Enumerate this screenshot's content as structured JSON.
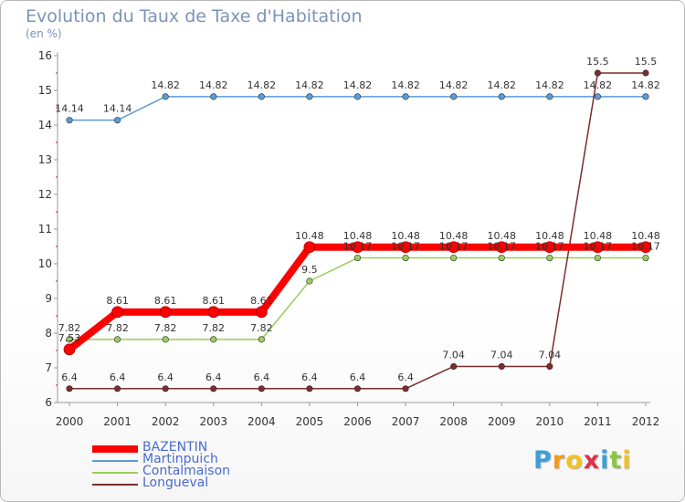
{
  "title": "Evolution du Taux de Taxe d'Habitation",
  "unit_label": "(en %)",
  "chart_data": {
    "type": "line",
    "title": "Evolution du Taux de Taxe d'Habitation",
    "ylabel": "(en %)",
    "xlabel": "",
    "categories": [
      "2000",
      "2001",
      "2002",
      "2003",
      "2004",
      "2005",
      "2006",
      "2007",
      "2008",
      "2009",
      "2010",
      "2011",
      "2012"
    ],
    "ylim": [
      6,
      16
    ],
    "yticks": [
      "6",
      "7",
      "8",
      "9",
      "10",
      "11",
      "12",
      "13",
      "14",
      "15",
      "16"
    ],
    "grid": false,
    "legend_position": "bottom-left",
    "series": [
      {
        "name": "BAZENTIN",
        "color": "#ff0000",
        "emphasis": "thick",
        "values": [
          7.53,
          8.61,
          8.61,
          8.61,
          8.61,
          10.48,
          10.48,
          10.48,
          10.48,
          10.48,
          10.48,
          10.48,
          10.48
        ],
        "labels": [
          "7.53",
          "8.61",
          "8.61",
          "8.61",
          "8.61",
          "10.48",
          "10.48",
          "10.48",
          "10.48",
          "10.48",
          "10.48",
          "10.48",
          "10.48"
        ]
      },
      {
        "name": "Martinpuich",
        "color": "#5b9bd5",
        "emphasis": "thin",
        "values": [
          14.14,
          14.14,
          14.82,
          14.82,
          14.82,
          14.82,
          14.82,
          14.82,
          14.82,
          14.82,
          14.82,
          14.82,
          14.82
        ],
        "labels": [
          "14.14",
          "14.14",
          "14.82",
          "14.82",
          "14.82",
          "14.82",
          "14.82",
          "14.82",
          "14.82",
          "14.82",
          "14.82",
          "14.82",
          "14.82"
        ]
      },
      {
        "name": "Contalmaison",
        "color": "#9acd5a",
        "emphasis": "thin",
        "values": [
          7.82,
          7.82,
          7.82,
          7.82,
          7.82,
          9.5,
          10.17,
          10.17,
          10.17,
          10.17,
          10.17,
          10.17,
          10.17
        ],
        "labels": [
          "7.82",
          "7.82",
          "7.82",
          "7.82",
          "7.82",
          "9.5",
          "10.17",
          "10.17",
          "10.17",
          "10.17",
          "10.17",
          "10.17",
          "10.17"
        ]
      },
      {
        "name": "Longueval",
        "color": "#7b2d2d",
        "emphasis": "thin",
        "values": [
          6.4,
          6.4,
          6.4,
          6.4,
          6.4,
          6.4,
          6.4,
          6.4,
          7.04,
          7.04,
          7.04,
          15.5,
          15.5
        ],
        "labels": [
          "6.4",
          "6.4",
          "6.4",
          "6.4",
          "6.4",
          "6.4",
          "6.4",
          "6.4",
          "7.04",
          "7.04",
          "7.04",
          "15.5",
          "15.5"
        ]
      }
    ]
  },
  "logo": {
    "letters": [
      "P",
      "r",
      "o",
      "x",
      "i",
      "t",
      "i"
    ],
    "colors": [
      "#3aa0d8",
      "#f29a1e",
      "#f2c21e",
      "#d8344c",
      "#3aa0d8",
      "#8cc63f",
      "#f2c21e"
    ]
  }
}
